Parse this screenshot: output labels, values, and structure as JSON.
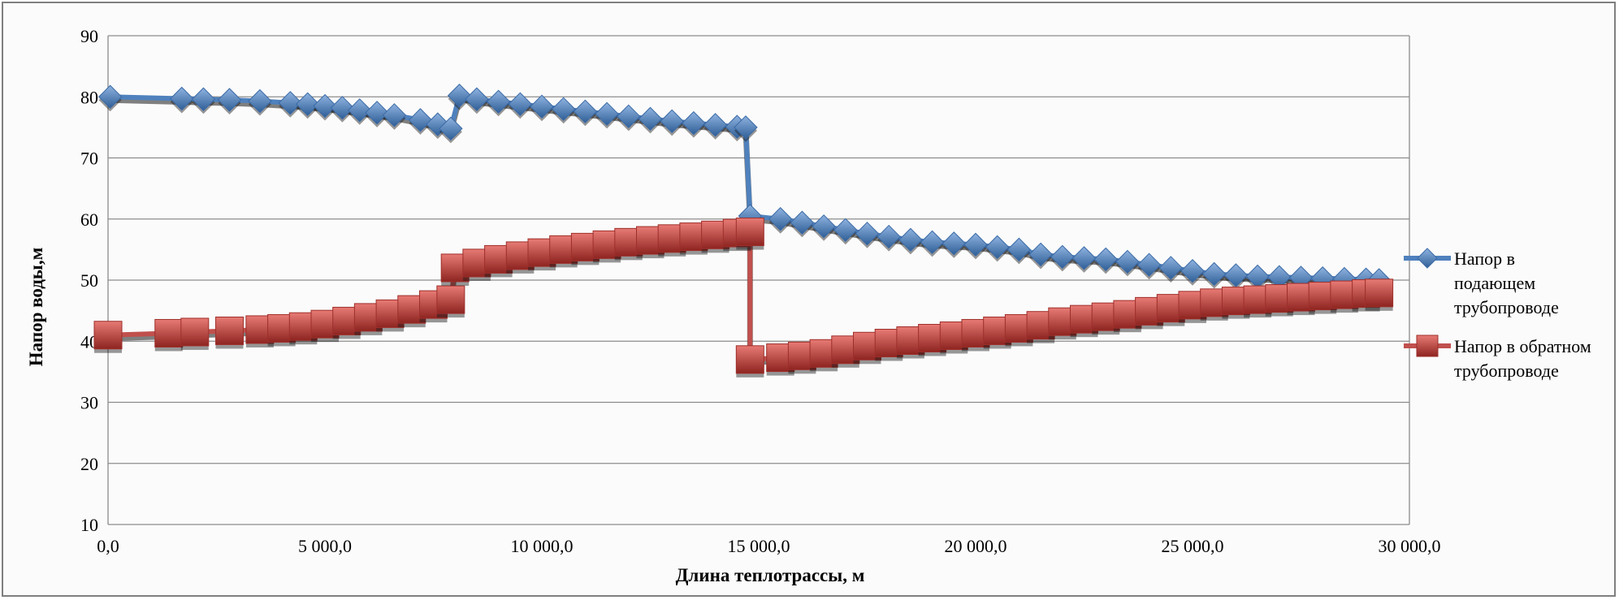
{
  "chart_data": {
    "type": "line",
    "title": "",
    "xlabel": "Длина теплотрассы, м",
    "ylabel": "Напор воды,м",
    "xlim": [
      0,
      30000
    ],
    "ylim": [
      10,
      90
    ],
    "grid": true,
    "legend_position": "right",
    "x_ticks": [
      0,
      5000,
      10000,
      15000,
      20000,
      25000,
      30000
    ],
    "x_tick_labels": [
      "0,0",
      "5 000,0",
      "10 000,0",
      "15 000,0",
      "20 000,0",
      "25 000,0",
      "30 000,0"
    ],
    "y_ticks": [
      10,
      20,
      30,
      40,
      50,
      60,
      70,
      80,
      90
    ],
    "y_tick_labels": [
      "10",
      "20",
      "30",
      "40",
      "50",
      "60",
      "70",
      "80",
      "90"
    ],
    "series": [
      {
        "name": "Напор в подающем трубопроводе",
        "color": "#4f81bd",
        "marker": "diamond",
        "points": [
          [
            50,
            80.0
          ],
          [
            1700,
            79.7
          ],
          [
            2200,
            79.6
          ],
          [
            2800,
            79.5
          ],
          [
            3500,
            79.3
          ],
          [
            4200,
            79.0
          ],
          [
            4600,
            78.8
          ],
          [
            5000,
            78.5
          ],
          [
            5400,
            78.2
          ],
          [
            5800,
            77.8
          ],
          [
            6200,
            77.4
          ],
          [
            6600,
            77.0
          ],
          [
            7200,
            76.2
          ],
          [
            7600,
            75.5
          ],
          [
            7900,
            74.8
          ],
          [
            8100,
            80.2
          ],
          [
            8500,
            79.6
          ],
          [
            9000,
            79.2
          ],
          [
            9500,
            78.8
          ],
          [
            10000,
            78.4
          ],
          [
            10500,
            78.0
          ],
          [
            11000,
            77.6
          ],
          [
            11500,
            77.2
          ],
          [
            12000,
            76.8
          ],
          [
            12500,
            76.4
          ],
          [
            13000,
            76.0
          ],
          [
            13500,
            75.7
          ],
          [
            14000,
            75.4
          ],
          [
            14500,
            75.1
          ],
          [
            14700,
            75.0
          ],
          [
            14800,
            60.5
          ],
          [
            15500,
            60.0
          ],
          [
            16000,
            59.4
          ],
          [
            16500,
            58.8
          ],
          [
            17000,
            58.2
          ],
          [
            17500,
            57.6
          ],
          [
            18000,
            57.1
          ],
          [
            18500,
            56.6
          ],
          [
            19000,
            56.2
          ],
          [
            19500,
            56.0
          ],
          [
            20000,
            55.8
          ],
          [
            20500,
            55.4
          ],
          [
            21000,
            55.0
          ],
          [
            21500,
            54.2
          ],
          [
            22000,
            53.8
          ],
          [
            22500,
            53.6
          ],
          [
            23000,
            53.4
          ],
          [
            23500,
            53.0
          ],
          [
            24000,
            52.5
          ],
          [
            24500,
            52.0
          ],
          [
            25000,
            51.5
          ],
          [
            25500,
            51.0
          ],
          [
            26000,
            50.8
          ],
          [
            26500,
            50.6
          ],
          [
            27000,
            50.5
          ],
          [
            27500,
            50.4
          ],
          [
            28000,
            50.3
          ],
          [
            28500,
            50.2
          ],
          [
            29000,
            50.1
          ],
          [
            29300,
            50.0
          ]
        ]
      },
      {
        "name": "Напор в обратном трубопроводе",
        "color": "#c0504d",
        "marker": "square",
        "points": [
          [
            0,
            41.0
          ],
          [
            1400,
            41.3
          ],
          [
            2000,
            41.5
          ],
          [
            2800,
            41.7
          ],
          [
            3500,
            41.9
          ],
          [
            4000,
            42.1
          ],
          [
            4500,
            42.4
          ],
          [
            5000,
            42.8
          ],
          [
            5500,
            43.3
          ],
          [
            6000,
            43.9
          ],
          [
            6500,
            44.5
          ],
          [
            7000,
            45.2
          ],
          [
            7500,
            46.0
          ],
          [
            7900,
            46.8
          ],
          [
            8000,
            52.0
          ],
          [
            8500,
            52.8
          ],
          [
            9000,
            53.4
          ],
          [
            9500,
            54.0
          ],
          [
            10000,
            54.5
          ],
          [
            10500,
            55.0
          ],
          [
            11000,
            55.4
          ],
          [
            11500,
            55.8
          ],
          [
            12000,
            56.2
          ],
          [
            12500,
            56.5
          ],
          [
            13000,
            56.8
          ],
          [
            13500,
            57.1
          ],
          [
            14000,
            57.4
          ],
          [
            14500,
            57.7
          ],
          [
            14800,
            57.9
          ],
          [
            14800,
            37.0
          ],
          [
            15500,
            37.3
          ],
          [
            16000,
            37.6
          ],
          [
            16500,
            38.0
          ],
          [
            17000,
            38.6
          ],
          [
            17500,
            39.2
          ],
          [
            18000,
            39.7
          ],
          [
            18500,
            40.1
          ],
          [
            19000,
            40.5
          ],
          [
            19500,
            40.9
          ],
          [
            20000,
            41.3
          ],
          [
            20500,
            41.7
          ],
          [
            21000,
            42.1
          ],
          [
            21500,
            42.6
          ],
          [
            22000,
            43.2
          ],
          [
            22500,
            43.6
          ],
          [
            23000,
            44.0
          ],
          [
            23500,
            44.4
          ],
          [
            24000,
            44.9
          ],
          [
            24500,
            45.4
          ],
          [
            25000,
            45.9
          ],
          [
            25500,
            46.3
          ],
          [
            26000,
            46.6
          ],
          [
            26500,
            46.8
          ],
          [
            27000,
            47.0
          ],
          [
            27500,
            47.2
          ],
          [
            28000,
            47.4
          ],
          [
            28500,
            47.6
          ],
          [
            29000,
            47.8
          ],
          [
            29300,
            47.9
          ]
        ]
      }
    ]
  }
}
